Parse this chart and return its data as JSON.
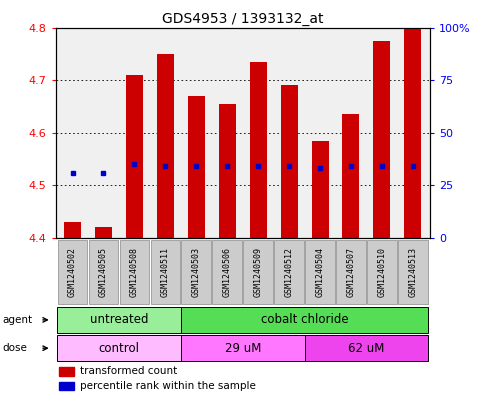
{
  "title": "GDS4953 / 1393132_at",
  "samples": [
    "GSM1240502",
    "GSM1240505",
    "GSM1240508",
    "GSM1240511",
    "GSM1240503",
    "GSM1240506",
    "GSM1240509",
    "GSM1240512",
    "GSM1240504",
    "GSM1240507",
    "GSM1240510",
    "GSM1240513"
  ],
  "transformed_counts": [
    4.43,
    4.42,
    4.71,
    4.75,
    4.67,
    4.655,
    4.735,
    4.69,
    4.585,
    4.635,
    4.775,
    4.8
  ],
  "percentile_ranks_pct": [
    31,
    31,
    35,
    34,
    34,
    34,
    34,
    34,
    33,
    34,
    34,
    34
  ],
  "bar_bottom": 4.4,
  "ylim_left": [
    4.4,
    4.8
  ],
  "ylim_right": [
    0,
    100
  ],
  "yticks_left": [
    4.4,
    4.5,
    4.6,
    4.7,
    4.8
  ],
  "yticks_right": [
    0,
    25,
    50,
    75,
    100
  ],
  "ytick_labels_right": [
    "0",
    "25",
    "50",
    "75",
    "100%"
  ],
  "bar_color": "#cc0000",
  "blue_marker_color": "#0000cc",
  "grid_color": "#000000",
  "plot_bg": "#f0f0f0",
  "agent_groups": [
    {
      "label": "untreated",
      "start": 0,
      "end": 4,
      "color": "#99ee99"
    },
    {
      "label": "cobalt chloride",
      "start": 4,
      "end": 12,
      "color": "#55dd55"
    }
  ],
  "dose_groups": [
    {
      "label": "control",
      "start": 0,
      "end": 4,
      "color": "#ffbbff"
    },
    {
      "label": "29 uM",
      "start": 4,
      "end": 8,
      "color": "#ff77ff"
    },
    {
      "label": "62 uM",
      "start": 8,
      "end": 12,
      "color": "#ee44ee"
    }
  ],
  "legend_items": [
    {
      "color": "#cc0000",
      "label": "transformed count"
    },
    {
      "color": "#0000cc",
      "label": "percentile rank within the sample"
    }
  ],
  "font_size_title": 10,
  "font_size_ticks": 8,
  "font_size_sample": 6,
  "font_size_group": 8.5,
  "font_size_legend": 7.5,
  "font_size_rowlabel": 7.5
}
